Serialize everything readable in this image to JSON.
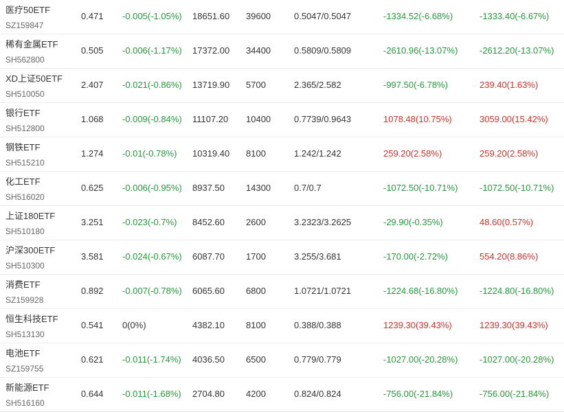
{
  "table": {
    "rows": [
      [
        "医疗50ETF",
        "SZ159847",
        "0.471",
        "-0.005(-1.05%)",
        "18651.60",
        "39600",
        "0.5047/0.5047",
        "-1334.52(-6.68%)",
        "-1333.40(-6.67%)"
      ],
      [
        "稀有金属ETF",
        "SH562800",
        "0.505",
        "-0.006(-1.17%)",
        "17372.00",
        "34400",
        "0.5809/0.5809",
        "-2610.96(-13.07%)",
        "-2612.20(-13.07%)"
      ],
      [
        "XD上证50ETF",
        "SH510050",
        "2.407",
        "-0.021(-0.86%)",
        "13719.90",
        "5700",
        "2.365/2.582",
        "-997.50(-6.78%)",
        "239.40(1.63%)"
      ],
      [
        "银行ETF",
        "SH512800",
        "1.068",
        "-0.009(-0.84%)",
        "11107.20",
        "10400",
        "0.7739/0.9643",
        "1078.48(10.75%)",
        "3059.00(15.42%)"
      ],
      [
        "钢铁ETF",
        "SH515210",
        "1.274",
        "-0.01(-0.78%)",
        "10319.40",
        "8100",
        "1.242/1.242",
        "259.20(2.58%)",
        "259.20(2.58%)"
      ],
      [
        "化工ETF",
        "SH516020",
        "0.625",
        "-0.006(-0.95%)",
        "8937.50",
        "14300",
        "0.7/0.7",
        "-1072.50(-10.71%)",
        "-1072.50(-10.71%)"
      ],
      [
        "上证180ETF",
        "SH510180",
        "3.251",
        "-0.023(-0.7%)",
        "8452.60",
        "2600",
        "3.2323/3.2625",
        "-29.90(-0.35%)",
        "48.60(0.57%)"
      ],
      [
        "沪深300ETF",
        "SH510300",
        "3.581",
        "-0.024(-0.67%)",
        "6087.70",
        "1700",
        "3.255/3.681",
        "-170.00(-2.72%)",
        "554.20(8.86%)"
      ],
      [
        "消费ETF",
        "SZ159928",
        "0.892",
        "-0.007(-0.78%)",
        "6065.60",
        "6800",
        "1.0721/1.0721",
        "-1224.68(-16.80%)",
        "-1224.80(-16.80%)"
      ],
      [
        "恒生科技ETF",
        "SH513130",
        "0.541",
        "0(0%)",
        "4382.10",
        "8100",
        "0.388/0.388",
        "1239.30(39.43%)",
        "1239.30(39.43%)"
      ],
      [
        "电池ETF",
        "SZ159755",
        "0.621",
        "-0.011(-1.74%)",
        "4036.50",
        "6500",
        "0.779/0.779",
        "-1027.00(-20.28%)",
        "-1027.00(-20.28%)"
      ],
      [
        "新能源ETF",
        "SH516160",
        "0.644",
        "-0.011(-1.68%)",
        "2704.80",
        "4200",
        "0.824/0.824",
        "-756.00(-21.84%)",
        "-756.00(-21.84%)"
      ]
    ]
  }
}
